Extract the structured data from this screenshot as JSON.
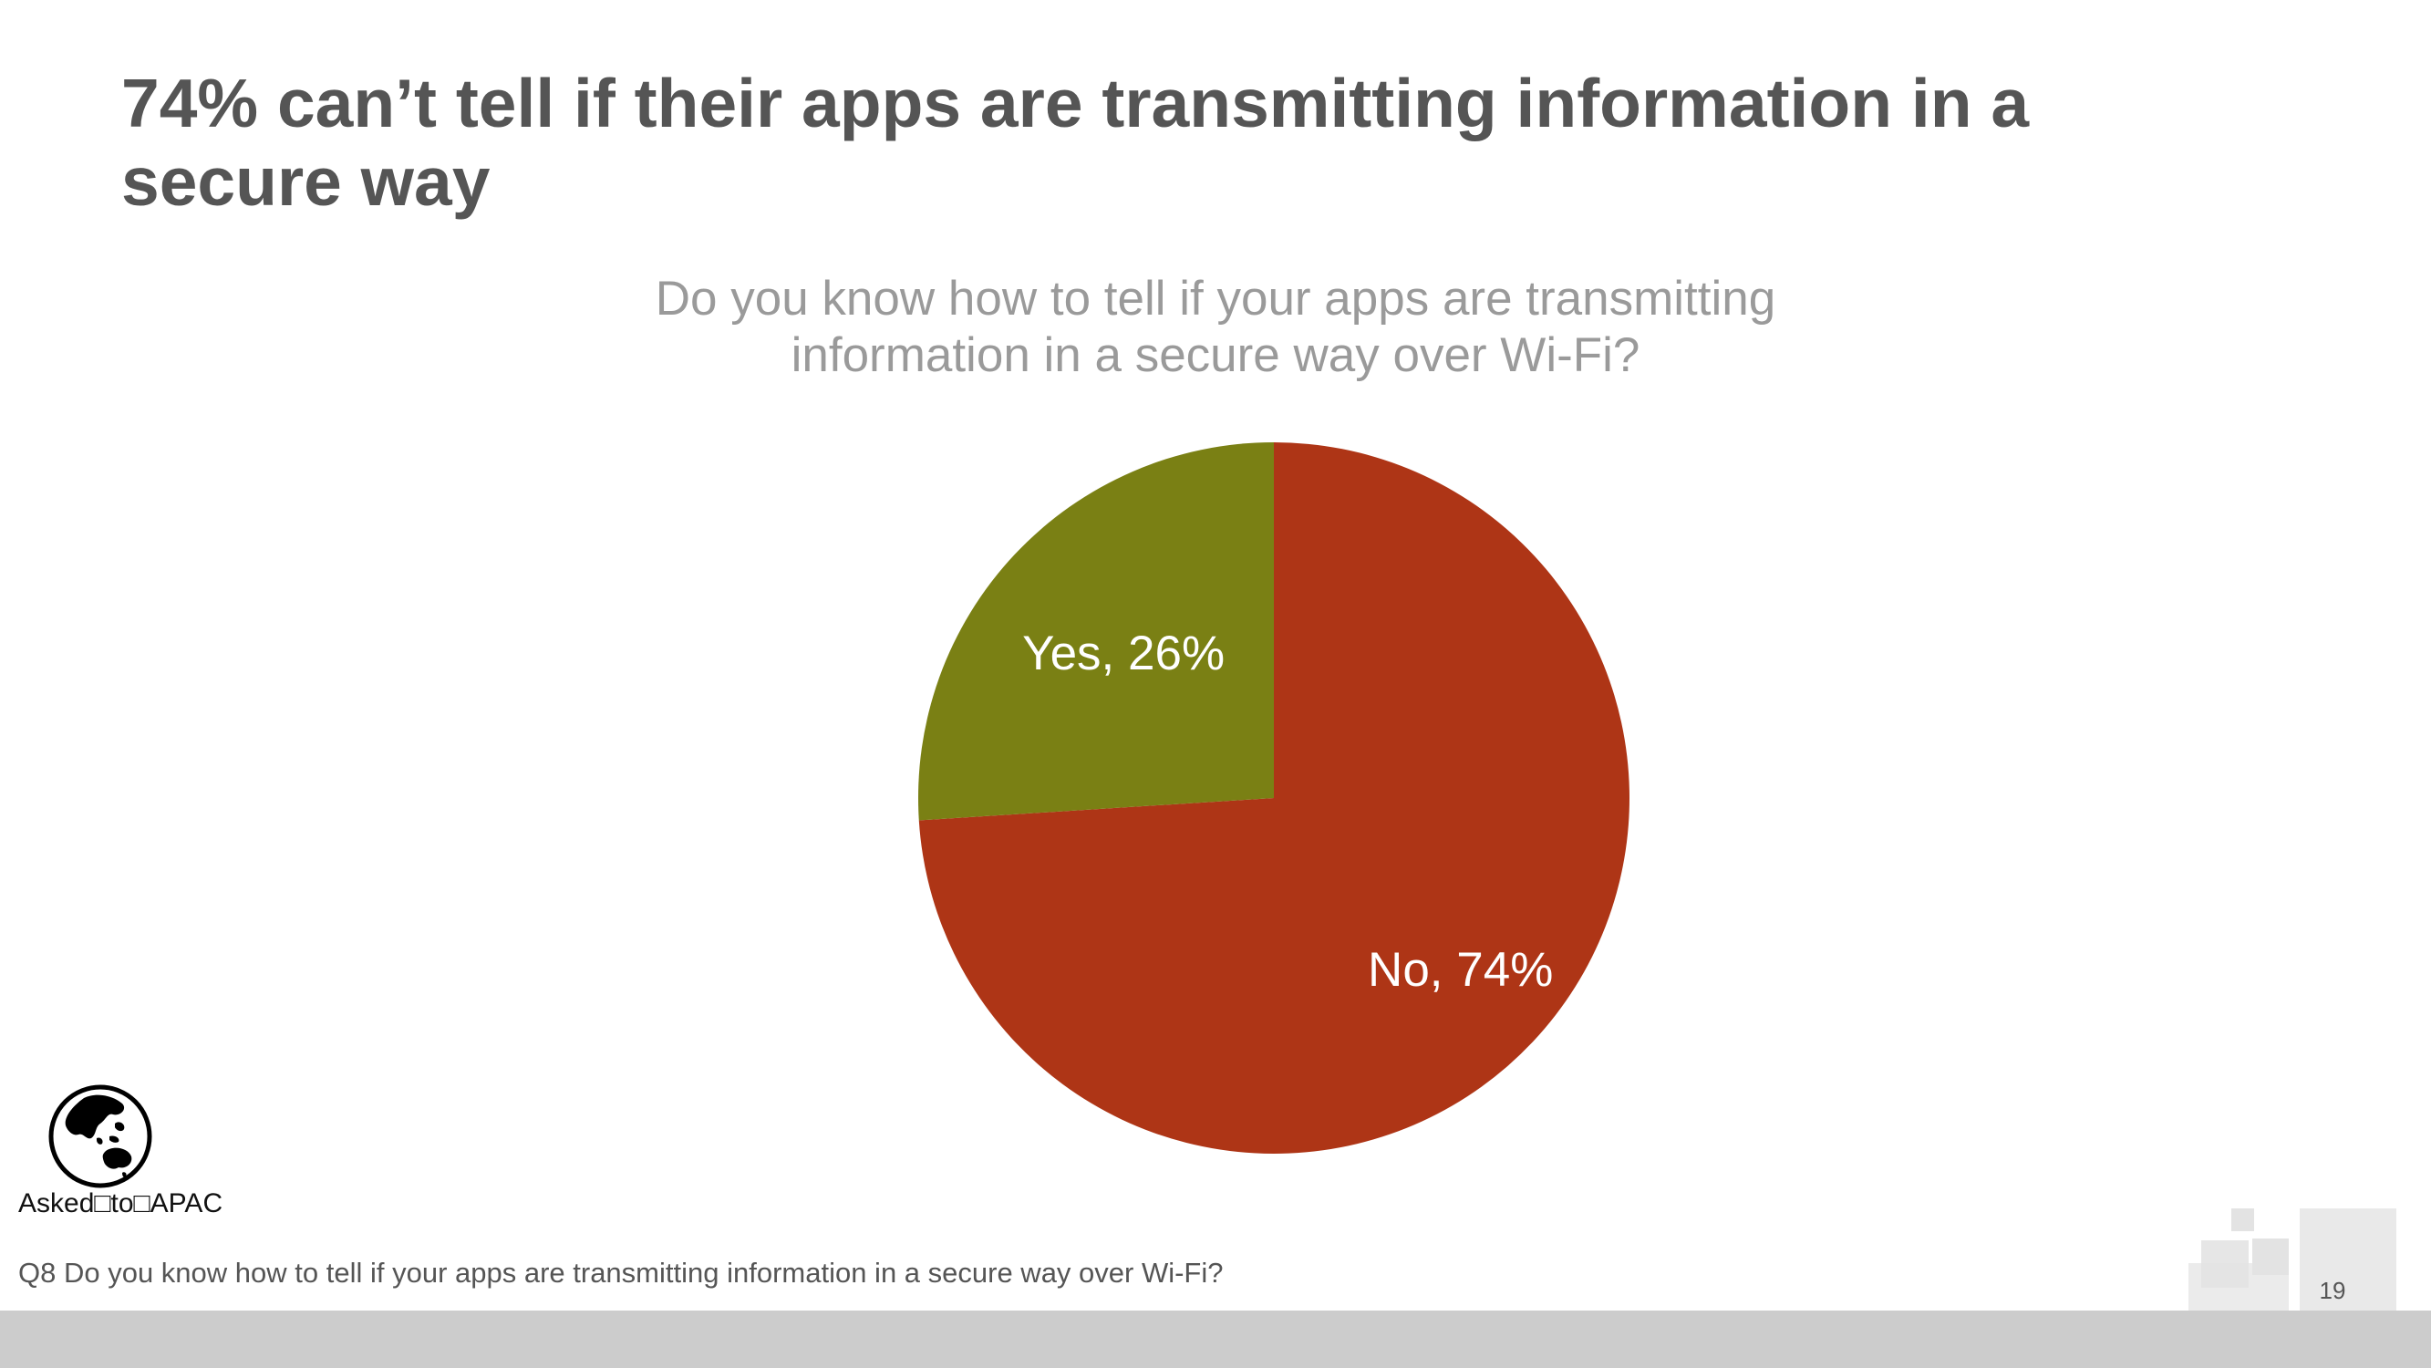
{
  "slide": {
    "title": "74% can’t tell if their apps are transmitting information in a secure way",
    "asked_to": "Asked□to□APAC",
    "footnote": "Q8 Do you know how to tell if your apps are transmitting information in a secure way over Wi-Fi?",
    "page_number": "19",
    "globe_icon": "globe-asia-pacific-icon"
  },
  "chart_data": {
    "type": "pie",
    "title": "Do you know how to tell if your apps are transmitting information in a secure way over Wi-Fi?",
    "start_angle_deg": 0,
    "direction": "clockwise",
    "slices": [
      {
        "label": "No",
        "value": 74,
        "display": "No, 74%",
        "color": "#ae3516"
      },
      {
        "label": "Yes",
        "value": 26,
        "display": "Yes, 26%",
        "color": "#7a8014"
      }
    ],
    "label_color": "#ffffff"
  },
  "colors": {
    "title": "#555555",
    "chart_title": "#9a9a9a",
    "footer_bar": "#cccccc",
    "decor_squares": "#e3e3e3"
  }
}
